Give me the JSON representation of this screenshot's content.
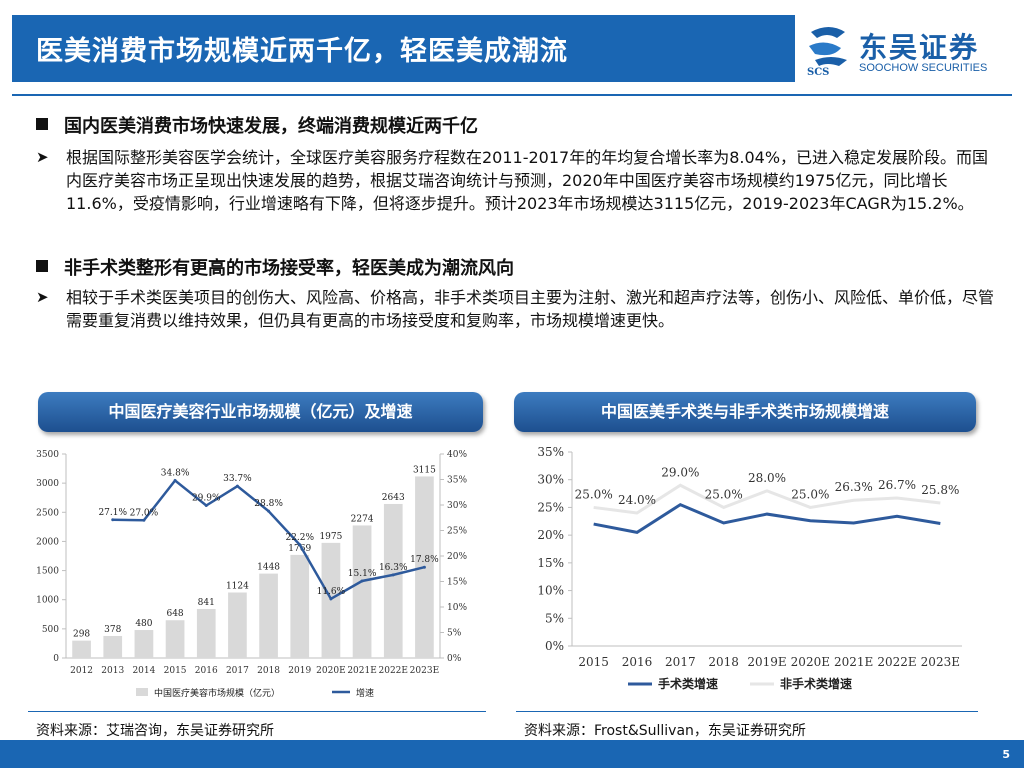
{
  "header": {
    "title": "医美消费市场规模近两千亿，轻医美成潮流"
  },
  "logo": {
    "cn": "东吴证券",
    "en": "SOOCHOW SECURITIES",
    "mark_text": "SCS"
  },
  "sections": [
    {
      "heading": "国内医美消费市场快速发展，终端消费规模近两千亿",
      "bullet": "根据国际整形美容医学会统计，全球医疗美容服务疗程数在2011-2017年的年均复合增长率为8.04%，已进入稳定发展阶段。而国内医疗美容市场正呈现出快速发展的趋势，根据艾瑞咨询统计与预测，2020年中国医疗美容市场规模约1975亿元，同比增长11.6%，受疫情影响，行业增速略有下降，但将逐步提升。预计2023年市场规模达3115亿元，2019-2023年CAGR为15.2%。"
    },
    {
      "heading": "非手术类整形有更高的市场接受率，轻医美成为潮流风向",
      "bullet": "相较于手术类医美项目的创伤大、风险高、价格高，非手术类项目主要为注射、激光和超声疗法等，创伤小、风险低、单价低，尽管需要重复消费以维持效果，但仍具有更高的市场接受度和复购率，市场规模增速更快。"
    }
  ],
  "chart_headers": [
    "中国医疗美容行业市场规模（亿元）及增速",
    "中国医美手术类与非手术类市场规模增速"
  ],
  "sources": [
    "资料来源：艾瑞咨询，东吴证券研究所",
    "资料来源：Frost&Sullivan，东吴证券研究所"
  ],
  "page_number": "5",
  "colors": {
    "brand_blue": "#1a66b3",
    "bar_gray": "#d9d9d9",
    "line_blue": "#2e5a9c",
    "line_light": "#e6e6e6"
  },
  "chart_data": [
    {
      "type": "bar",
      "categories": [
        "2012",
        "2013",
        "2014",
        "2015",
        "2016",
        "2017",
        "2018",
        "2019",
        "2020E",
        "2021E",
        "2022E",
        "2023E"
      ],
      "series": [
        {
          "name": "中国医疗美容市场规模（亿元）",
          "values": [
            298,
            378,
            480,
            648,
            841,
            1124,
            1448,
            1769,
            1975,
            2274,
            2643,
            3115
          ]
        },
        {
          "name": "增速",
          "type": "line",
          "values": [
            null,
            27.1,
            27.0,
            34.8,
            29.9,
            33.7,
            28.8,
            22.2,
            11.6,
            15.1,
            16.3,
            17.8
          ]
        }
      ],
      "y_ticks": [
        "0",
        "500",
        "1000",
        "1500",
        "2000",
        "2500",
        "3000",
        "3500"
      ],
      "y2_ticks": [
        "0%",
        "5%",
        "10%",
        "15%",
        "20%",
        "25%",
        "30%",
        "35%",
        "40%"
      ],
      "ylim": [
        0,
        3500
      ],
      "y2lim": [
        0,
        40
      ],
      "legend": "bottom",
      "grid": false
    },
    {
      "type": "line",
      "categories": [
        "2015",
        "2016",
        "2017",
        "2018",
        "2019E",
        "2020E",
        "2021E",
        "2022E",
        "2023E"
      ],
      "series": [
        {
          "name": "手术类增速",
          "values": [
            22.0,
            20.5,
            25.5,
            22.2,
            23.8,
            22.6,
            22.2,
            23.4,
            22.1
          ]
        },
        {
          "name": "非手术类增速",
          "values": [
            25.0,
            24.0,
            29.0,
            25.0,
            28.0,
            25.0,
            26.3,
            26.7,
            25.8
          ]
        }
      ],
      "labels": [
        "25.0%",
        "24.0%",
        "29.0%",
        "25.0%",
        "28.0%",
        "25.0%",
        "26.3%",
        "26.7%",
        "25.8%"
      ],
      "y_ticks": [
        "0%",
        "5%",
        "10%",
        "15%",
        "20%",
        "25%",
        "30%",
        "35%"
      ],
      "ylim": [
        0,
        35
      ],
      "legend": "bottom",
      "grid": false
    }
  ]
}
